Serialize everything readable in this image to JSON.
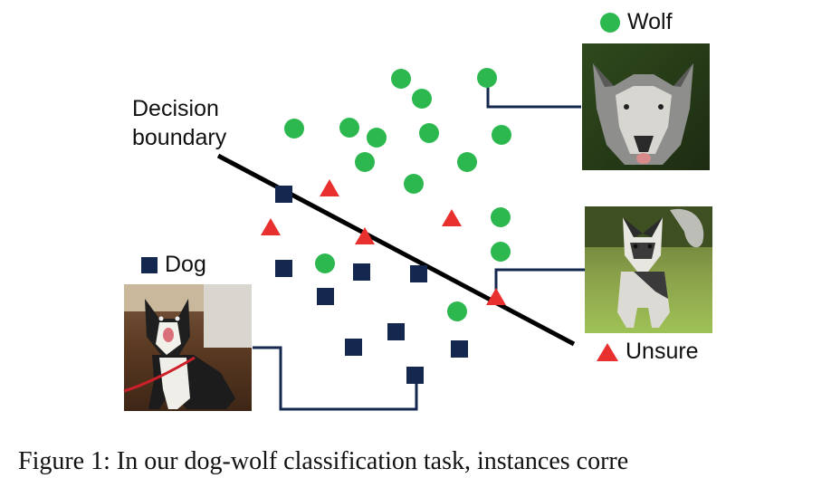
{
  "boundary_label_line1": "Decision",
  "boundary_label_line2": "boundary",
  "legend": {
    "wolf": "Wolf",
    "dog": "Dog",
    "unsure": "Unsure"
  },
  "caption": "Figure 1: In our dog-wolf classification task, instances corre",
  "colors": {
    "wolf": "#2db84f",
    "dog": "#14284f",
    "unsure": "#e8312f",
    "boundary": "#000000",
    "leader": "#14284f"
  },
  "photos": {
    "wolf": "wolf-photo",
    "unsure": "husky-photo",
    "dog": "dog-photo"
  }
}
